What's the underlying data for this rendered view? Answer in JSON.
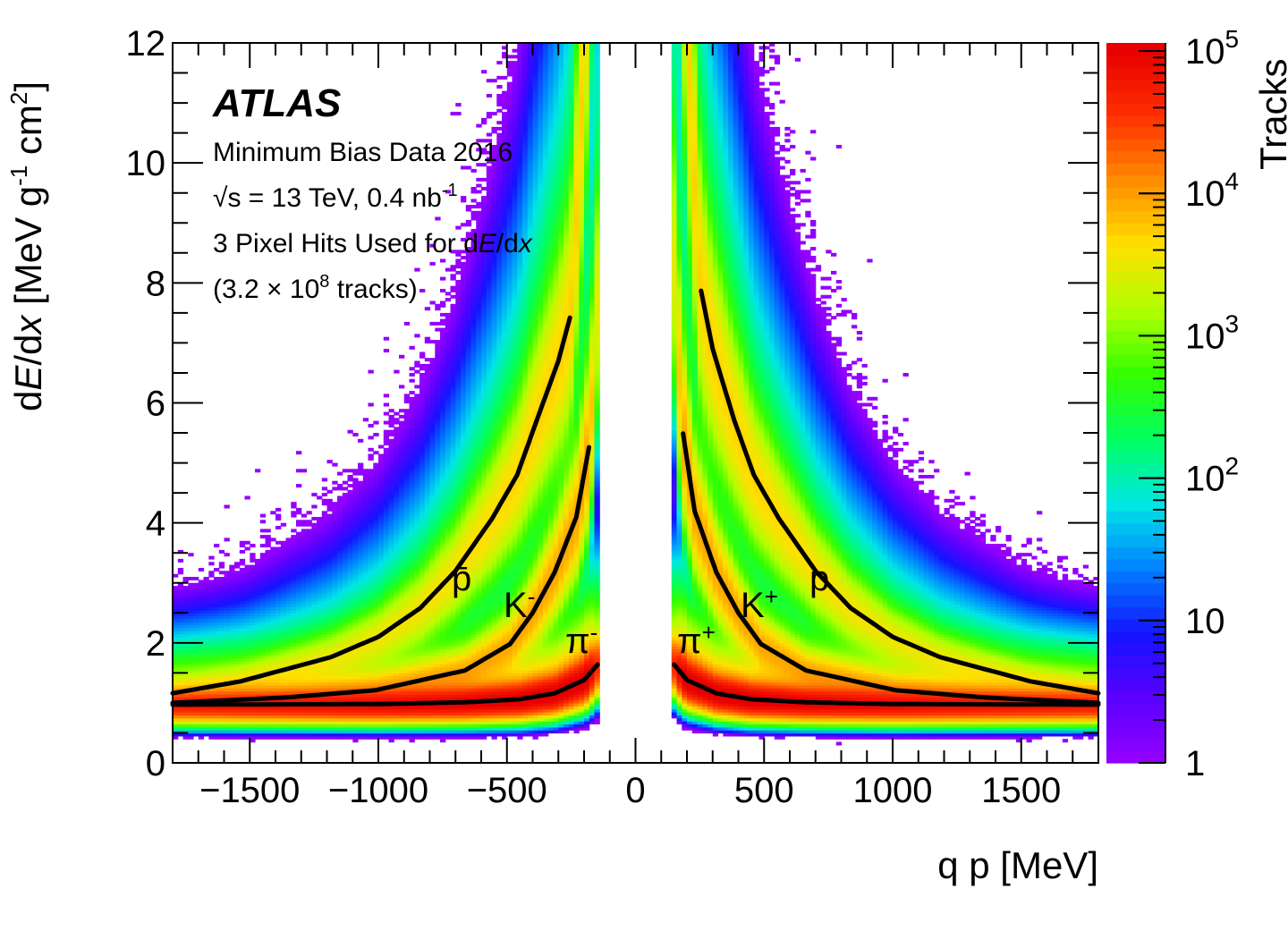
{
  "chart_data": {
    "type": "heatmap",
    "title": "",
    "xlabel": {
      "pre": "q p [MeV]"
    },
    "ylabel": {
      "a": "d",
      "b": "E",
      "c": "/d",
      "d": "x",
      "e": " [MeV g",
      "f": "-1",
      "g": " cm",
      "h": "2",
      "i": "]"
    },
    "xlim": [
      -1800,
      1800
    ],
    "ylim": [
      0,
      12
    ],
    "xticks": [
      -1500,
      -1000,
      -500,
      0,
      500,
      1000,
      1500
    ],
    "xtick_labels": [
      "−1500",
      "−1000",
      "−500",
      "0",
      "500",
      "1000",
      "1500"
    ],
    "yticks": [
      0,
      2,
      4,
      6,
      8,
      10,
      12
    ],
    "ytick_labels": [
      "0",
      "2",
      "4",
      "6",
      "8",
      "10",
      "12"
    ],
    "colorbar": {
      "label": "Tracks",
      "scale": "log",
      "range": [
        1,
        100000
      ],
      "ticks": [
        {
          "value": 1,
          "base": "1",
          "exp": ""
        },
        {
          "value": 10,
          "base": "10",
          "exp": ""
        },
        {
          "value": 100,
          "base": "10",
          "exp": "2"
        },
        {
          "value": 1000,
          "base": "10",
          "exp": "3"
        },
        {
          "value": 10000,
          "base": "10",
          "exp": "4"
        },
        {
          "value": 100000,
          "base": "10",
          "exp": "5"
        }
      ],
      "palette": [
        "#9400ff",
        "#5a00ff",
        "#1414ff",
        "#0080ff",
        "#00e6e6",
        "#00ff60",
        "#33ff00",
        "#b0ff00",
        "#ffe000",
        "#ff8c00",
        "#ff3000",
        "#e80000"
      ]
    },
    "curves": [
      {
        "label": "π",
        "sup": "+",
        "points": [
          [
            150,
            1.64
          ],
          [
            200,
            1.38
          ],
          [
            314,
            1.16
          ],
          [
            450,
            1.06
          ],
          [
            663,
            1.01
          ],
          [
            1000,
            0.98
          ],
          [
            1800,
            0.97
          ]
        ]
      },
      {
        "label": "K",
        "sup": "+",
        "points": [
          [
            185,
            5.49
          ],
          [
            230,
            4.2
          ],
          [
            314,
            3.18
          ],
          [
            400,
            2.5
          ],
          [
            488,
            1.98
          ],
          [
            663,
            1.54
          ],
          [
            1012,
            1.21
          ],
          [
            1360,
            1.09
          ],
          [
            1800,
            1.0
          ]
        ]
      },
      {
        "label": "p",
        "sup": "",
        "points": [
          [
            255,
            7.87
          ],
          [
            300,
            6.9
          ],
          [
            384,
            5.71
          ],
          [
            460,
            4.8
          ],
          [
            558,
            4.07
          ],
          [
            700,
            3.2
          ],
          [
            837,
            2.58
          ],
          [
            1000,
            2.1
          ],
          [
            1186,
            1.76
          ],
          [
            1535,
            1.36
          ],
          [
            1800,
            1.16
          ]
        ]
      },
      {
        "label": "π",
        "sup": "-",
        "points": [
          [
            -147,
            1.64
          ],
          [
            -200,
            1.38
          ],
          [
            -314,
            1.16
          ],
          [
            -450,
            1.06
          ],
          [
            -663,
            1.01
          ],
          [
            -1000,
            0.98
          ],
          [
            -1800,
            0.97
          ]
        ]
      },
      {
        "label": "K",
        "sup": "-",
        "points": [
          [
            -181,
            5.26
          ],
          [
            -230,
            4.1
          ],
          [
            -314,
            3.18
          ],
          [
            -400,
            2.5
          ],
          [
            -488,
            1.98
          ],
          [
            -663,
            1.54
          ],
          [
            -1012,
            1.21
          ],
          [
            -1360,
            1.09
          ],
          [
            -1800,
            1.0
          ]
        ]
      },
      {
        "label": "p̄",
        "sup": "",
        "points": [
          [
            -255,
            7.42
          ],
          [
            -300,
            6.7
          ],
          [
            -384,
            5.71
          ],
          [
            -460,
            4.8
          ],
          [
            -558,
            4.07
          ],
          [
            -700,
            3.2
          ],
          [
            -837,
            2.58
          ],
          [
            -1000,
            2.1
          ],
          [
            -1186,
            1.76
          ],
          [
            -1535,
            1.36
          ],
          [
            -1800,
            1.16
          ]
        ]
      }
    ],
    "grid": false,
    "legend": "none"
  },
  "annotations": {
    "experiment": "ATLAS",
    "line1": "Minimum Bias Data 2016",
    "line2": {
      "root": "√s",
      "text": " = 13 TeV, 0.4 nb",
      "sup": "-1"
    },
    "line3": {
      "pre": "3 Pixel Hits Used for d",
      "e": "E",
      "mid": "/d",
      "x": "x"
    },
    "line4": {
      "pre": "(3.2 × 10",
      "sup": "8",
      "post": " tracks)"
    }
  }
}
